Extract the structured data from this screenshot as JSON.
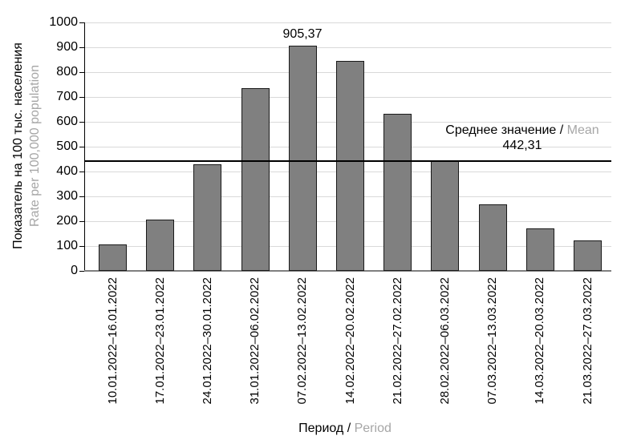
{
  "chart_data": {
    "type": "bar",
    "title": "",
    "categories": [
      "10.01.2022–16.01.2022",
      "17.01.2022–23.01.2022",
      "24.01.2022–30.01.2022",
      "31.01.2022–06.02.2022",
      "07.02.2022–13.02.2022",
      "14.02.2022–20.02.2022",
      "21.02.2022–27.02.2022",
      "28.02.2022–06.03.2022",
      "07.03.2022–13.03.2022",
      "14.03.2022–20.03.2022",
      "21.03.2022–27.03.2022"
    ],
    "values": [
      105,
      208,
      430,
      735,
      905.37,
      845,
      632,
      445,
      268,
      170,
      122
    ],
    "peak_label": {
      "category_index": 4,
      "text": "905,37"
    },
    "mean_line": {
      "value": 442.31,
      "label_ru": "Среднее значение /",
      "label_en": "Mean",
      "value_text": "442,31"
    },
    "xlabel": {
      "ru": "Период /",
      "en": "Period"
    },
    "ylabel": {
      "ru": "Показатель на 100 тыс. населения",
      "en": "Rate per 100,000 population"
    },
    "ylim": [
      0,
      1000
    ],
    "ytick_interval": 100,
    "grid": true,
    "legend": "none",
    "colors": {
      "bar_fill": "#808080",
      "bar_border": "#1a1a1a",
      "gridline": "#d9d9d9",
      "axis": "#808080",
      "mean_line": "#000000",
      "text": "#000000",
      "secondary_text": "#a6a6a6"
    }
  }
}
